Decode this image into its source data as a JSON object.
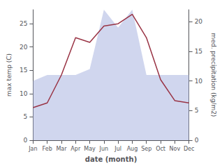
{
  "chart_data": {
    "type": "line",
    "xlabel": "date (month)",
    "ylabel": "max temp (C)",
    "y2label": "med. precipitation (kg/m2)",
    "categories": [
      "Jan",
      "Feb",
      "Mar",
      "Apr",
      "May",
      "Jun",
      "Jul",
      "Aug",
      "Sep",
      "Oct",
      "Nov",
      "Dec"
    ],
    "series": [
      {
        "type": "area",
        "color": "#aab4e0",
        "axis": "y2",
        "values": [
          10,
          11,
          11,
          11,
          12,
          22,
          19,
          22,
          11,
          11,
          11,
          11
        ]
      },
      {
        "type": "line",
        "color": "#993344",
        "axis": "y",
        "values": [
          7.0,
          8.0,
          14.0,
          22.0,
          21.0,
          24.5,
          25.0,
          27.0,
          22.0,
          13.0,
          8.5,
          8.0
        ]
      }
    ],
    "ylim": [
      0,
      28
    ],
    "yticks": [
      0,
      5,
      10,
      15,
      20,
      25
    ],
    "y2lim": [
      0,
      22
    ],
    "y2ticks": [
      0,
      5,
      10,
      15,
      20
    ],
    "grid": false
  }
}
